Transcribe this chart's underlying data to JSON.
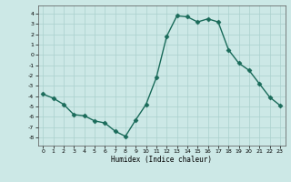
{
  "x": [
    0,
    1,
    2,
    3,
    4,
    5,
    6,
    7,
    8,
    9,
    10,
    11,
    12,
    13,
    14,
    15,
    16,
    17,
    18,
    19,
    20,
    21,
    22,
    23
  ],
  "y": [
    -3.8,
    -4.2,
    -4.8,
    -5.8,
    -5.9,
    -6.4,
    -6.6,
    -7.4,
    -7.9,
    -6.3,
    -4.8,
    -2.2,
    1.8,
    3.8,
    3.7,
    3.2,
    3.5,
    3.2,
    0.5,
    -0.8,
    -1.5,
    -2.8,
    -4.1,
    -4.9
  ],
  "xlabel": "Humidex (Indice chaleur)",
  "xlim": [
    -0.5,
    23.5
  ],
  "ylim": [
    -8.8,
    4.8
  ],
  "yticks": [
    -8,
    -7,
    -6,
    -5,
    -4,
    -3,
    -2,
    -1,
    0,
    1,
    2,
    3,
    4
  ],
  "xticks": [
    0,
    1,
    2,
    3,
    4,
    5,
    6,
    7,
    8,
    9,
    10,
    11,
    12,
    13,
    14,
    15,
    16,
    17,
    18,
    19,
    20,
    21,
    22,
    23
  ],
  "line_color": "#1a6b5a",
  "bg_color": "#cce8e6",
  "grid_color": "#aad0cd",
  "markersize": 2.5,
  "linewidth": 1.0
}
